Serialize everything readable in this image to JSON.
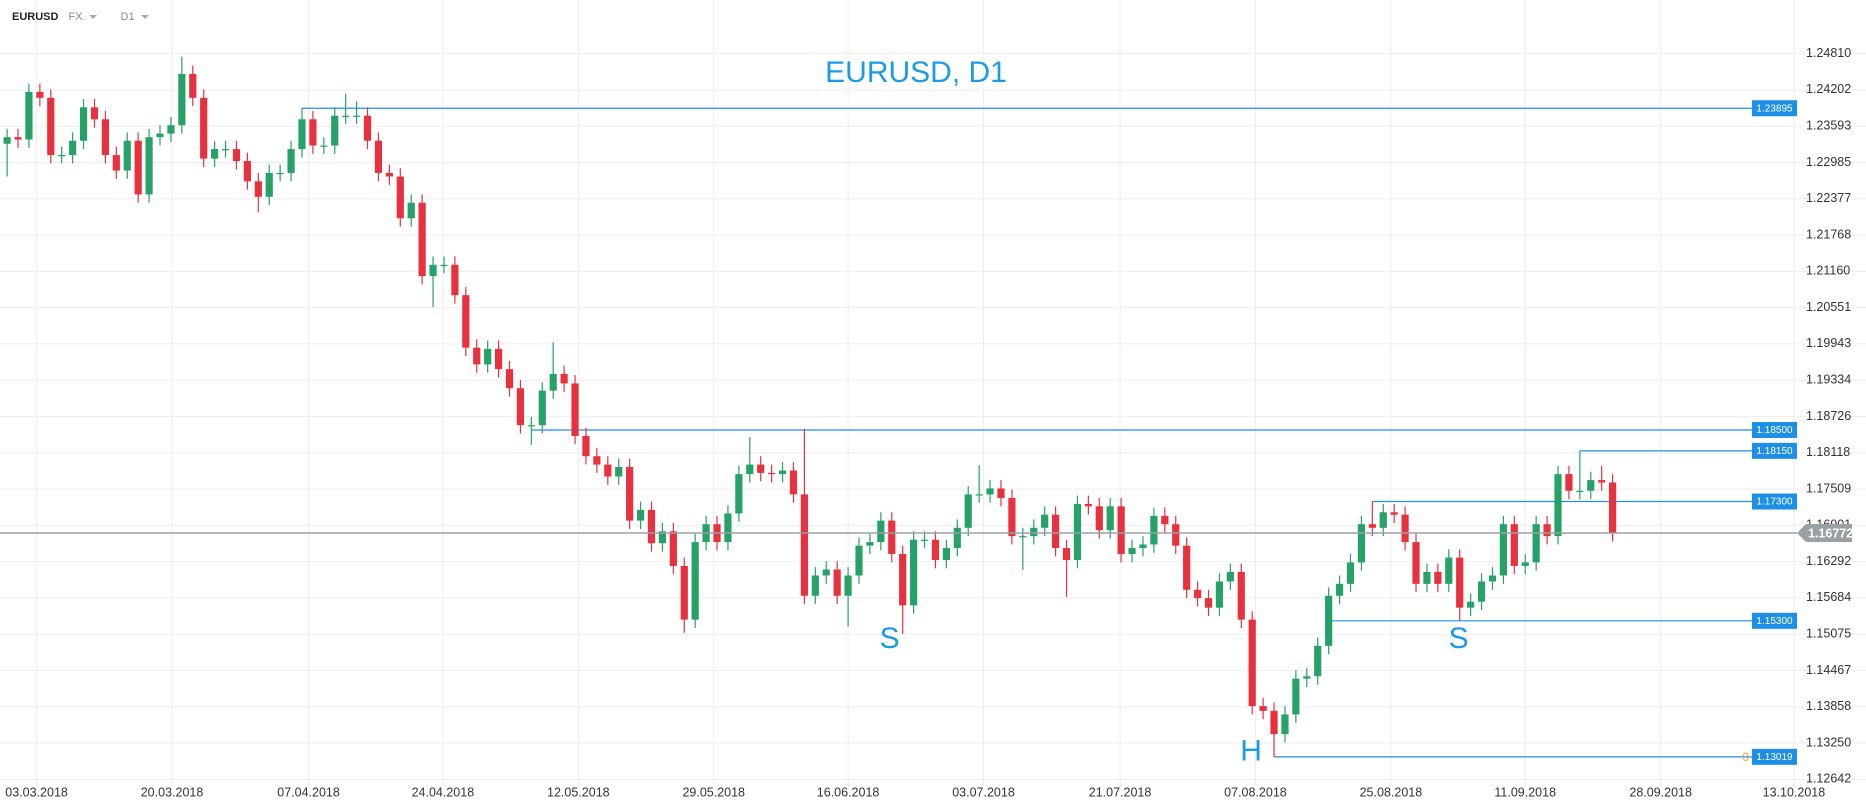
{
  "toolbar": {
    "symbol": "EURUSD",
    "market": "FX",
    "timeframe": "D1"
  },
  "chart_data": {
    "type": "candlestick",
    "title": "EURUSD, D1",
    "up_color": "#26a269",
    "down_color": "#e8313f",
    "level_color": "#1e8fe6",
    "last_color": "#9aa0a6",
    "grid": true,
    "xlim": [
      -0.65,
      170.2
    ],
    "xticks": [
      {
        "value": 2.7,
        "label": "03.03.2018"
      },
      {
        "value": 15.1,
        "label": "20.03.2018"
      },
      {
        "value": 27.6,
        "label": "07.04.2018"
      },
      {
        "value": 39.9,
        "label": "24.04.2018"
      },
      {
        "value": 52.3,
        "label": "12.05.2018"
      },
      {
        "value": 64.7,
        "label": "29.05.2018"
      },
      {
        "value": 77.0,
        "label": "16.06.2018"
      },
      {
        "value": 89.4,
        "label": "03.07.2018"
      },
      {
        "value": 101.9,
        "label": "21.07.2018"
      },
      {
        "value": 114.3,
        "label": "07.08.2018"
      },
      {
        "value": 126.7,
        "label": "25.08.2018"
      },
      {
        "value": 139.0,
        "label": "11.09.2018"
      },
      {
        "value": 151.4,
        "label": "28.09.2018"
      },
      {
        "value": 163.6,
        "label": "13.10.2018"
      }
    ],
    "ylim": [
      1.1253,
      1.2571
    ],
    "yticks": [
      {
        "value": 1.2481,
        "label": "1.24810"
      },
      1.24202,
      1.23593,
      1.22985,
      1.22377,
      1.21768,
      {
        "value": 1.2116,
        "label": "1.21160"
      },
      1.20551,
      1.19943,
      1.19334,
      1.18726,
      1.18118,
      1.17509,
      1.16901,
      1.16292,
      1.15684,
      1.15075,
      1.14467,
      1.13858,
      {
        "value": 1.1325,
        "label": "1.13250"
      },
      1.12642
    ],
    "open": [
      1.233,
      1.2341,
      1.2337,
      1.2417,
      1.2407,
      1.2311,
      1.2311,
      1.2335,
      1.2391,
      1.2371,
      1.2311,
      1.2285,
      1.2335,
      1.2245,
      1.2341,
      1.2347,
      1.2361,
      1.2447,
      1.2407,
      1.2305,
      1.2321,
      1.2321,
      1.2301,
      1.2267,
      1.2241,
      1.2281,
      1.2281,
      1.2321,
      1.2371,
      1.2327,
      1.2327,
      1.2377,
      1.2377,
      1.2377,
      1.2335,
      1.2281,
      1.2275,
      1.2205,
      1.2231,
      1.2108,
      1.2127,
      1.2127,
      1.2076,
      1.1988,
      1.196,
      1.1986,
      1.1952,
      1.192,
      1.1858,
      1.1858,
      1.1916,
      1.1944,
      1.1928,
      1.184,
      1.1806,
      1.1792,
      1.1772,
      1.1788,
      1.1698,
      1.1716,
      1.166,
      1.168,
      1.1622,
      1.1532,
      1.1662,
      1.1692,
      1.1662,
      1.171,
      1.1776,
      1.1792,
      1.1778,
      1.1776,
      1.1782,
      1.1742,
      1.1572,
      1.1606,
      1.1616,
      1.1572,
      1.1606,
      1.1656,
      1.1662,
      1.1698,
      1.1642,
      1.1556,
      1.1666,
      1.1666,
      1.1632,
      1.1652,
      1.1686,
      1.1742,
      1.1742,
      1.1752,
      1.1736,
      1.1672,
      1.1672,
      1.1686,
      1.1708,
      1.1652,
      1.1632,
      1.1726,
      1.1722,
      1.1682,
      1.1722,
      1.1642,
      1.1652,
      1.1658,
      1.1706,
      1.1692,
      1.1656,
      1.1582,
      1.1568,
      1.1552,
      1.1596,
      1.1612,
      1.1532,
      1.1387,
      1.1379,
      1.134,
      1.1373,
      1.1433,
      1.1437,
      1.1488,
      1.1572,
      1.1592,
      1.1628,
      1.1692,
      1.1686,
      1.1712,
      1.1708,
      1.1662,
      1.1592,
      1.1612,
      1.1592,
      1.1636,
      1.1552,
      1.1562,
      1.1596,
      1.1606,
      1.1692,
      1.1622,
      1.1628,
      1.1692,
      1.1672,
      1.1776,
      1.1748,
      1.1748,
      1.1766,
      1.1762
    ],
    "high": [
      1.2355,
      1.2355,
      1.2431,
      1.2431,
      1.2421,
      1.2325,
      1.2349,
      1.2405,
      1.2405,
      1.2385,
      1.2325,
      1.2349,
      1.2349,
      1.2355,
      1.2361,
      1.2375,
      1.2476,
      1.2461,
      1.2421,
      1.2335,
      1.2335,
      1.2335,
      1.2315,
      1.2281,
      1.2295,
      1.2295,
      1.2335,
      1.239,
      1.2385,
      1.2341,
      1.2391,
      1.2414,
      1.2401,
      1.2391,
      1.2349,
      1.2295,
      1.2289,
      1.2245,
      1.2245,
      1.2141,
      1.2141,
      1.2141,
      1.209,
      1.2002,
      1.2,
      1.2,
      1.1966,
      1.1934,
      1.1872,
      1.193,
      1.1997,
      1.1958,
      1.1942,
      1.1854,
      1.182,
      1.1806,
      1.1802,
      1.1802,
      1.173,
      1.173,
      1.1694,
      1.1694,
      1.1636,
      1.1676,
      1.1706,
      1.1706,
      1.1724,
      1.179,
      1.1838,
      1.1806,
      1.1792,
      1.1796,
      1.1796,
      1.1852,
      1.162,
      1.163,
      1.163,
      1.162,
      1.167,
      1.1676,
      1.1712,
      1.1712,
      1.1656,
      1.168,
      1.168,
      1.168,
      1.1666,
      1.17,
      1.1756,
      1.1791,
      1.1766,
      1.1766,
      1.175,
      1.1686,
      1.17,
      1.1722,
      1.1722,
      1.1666,
      1.174,
      1.174,
      1.1736,
      1.1736,
      1.1736,
      1.1666,
      1.1672,
      1.172,
      1.172,
      1.1706,
      1.167,
      1.1596,
      1.1582,
      1.161,
      1.1626,
      1.1626,
      1.1546,
      1.1401,
      1.1393,
      1.1387,
      1.1447,
      1.1451,
      1.1502,
      1.1586,
      1.1606,
      1.1642,
      1.1706,
      1.173,
      1.1726,
      1.1726,
      1.1722,
      1.1676,
      1.1626,
      1.1626,
      1.165,
      1.165,
      1.1576,
      1.161,
      1.162,
      1.1706,
      1.1706,
      1.1642,
      1.1706,
      1.1706,
      1.179,
      1.179,
      1.1815,
      1.178,
      1.179,
      1.1776
    ],
    "low": [
      1.2275,
      1.2323,
      1.2323,
      1.2393,
      1.2297,
      1.2297,
      1.2297,
      1.2321,
      1.2357,
      1.2297,
      1.2271,
      1.2271,
      1.2231,
      1.2231,
      1.2327,
      1.2333,
      1.2347,
      1.2393,
      1.2291,
      1.2291,
      1.2307,
      1.2287,
      1.2253,
      1.2215,
      1.2227,
      1.2267,
      1.2267,
      1.2307,
      1.2313,
      1.2313,
      1.2313,
      1.2363,
      1.2363,
      1.2321,
      1.2267,
      1.2261,
      1.2191,
      1.2191,
      1.2094,
      1.2056,
      1.2113,
      1.2062,
      1.1974,
      1.1946,
      1.1946,
      1.1938,
      1.1906,
      1.1844,
      1.1825,
      1.1844,
      1.1902,
      1.1914,
      1.1826,
      1.1792,
      1.1778,
      1.1758,
      1.1758,
      1.1684,
      1.1684,
      1.1646,
      1.1646,
      1.1608,
      1.151,
      1.1518,
      1.1648,
      1.1648,
      1.1648,
      1.1696,
      1.1762,
      1.1764,
      1.1762,
      1.1762,
      1.1728,
      1.1558,
      1.1558,
      1.1592,
      1.1558,
      1.152,
      1.1592,
      1.1642,
      1.1648,
      1.1628,
      1.1508,
      1.1542,
      1.1652,
      1.1618,
      1.1618,
      1.1638,
      1.1672,
      1.1728,
      1.1728,
      1.1722,
      1.1658,
      1.1615,
      1.1658,
      1.1672,
      1.1638,
      1.157,
      1.1618,
      1.1708,
      1.1668,
      1.1668,
      1.1628,
      1.1628,
      1.1638,
      1.1644,
      1.1678,
      1.1642,
      1.1568,
      1.1554,
      1.1538,
      1.1538,
      1.1582,
      1.1518,
      1.1373,
      1.1365,
      1.1302,
      1.1326,
      1.1359,
      1.1419,
      1.1423,
      1.1474,
      1.1558,
      1.1578,
      1.1614,
      1.1672,
      1.1672,
      1.1694,
      1.1648,
      1.1578,
      1.1578,
      1.1578,
      1.1578,
      1.153,
      1.1538,
      1.1548,
      1.1582,
      1.1592,
      1.1608,
      1.1608,
      1.1614,
      1.1658,
      1.1658,
      1.1734,
      1.1734,
      1.1734,
      1.1748,
      1.1663
    ],
    "close": [
      1.2341,
      1.2337,
      1.2417,
      1.2407,
      1.2311,
      1.2311,
      1.2335,
      1.2391,
      1.2371,
      1.2311,
      1.2285,
      1.2335,
      1.2245,
      1.2341,
      1.2347,
      1.2361,
      1.2447,
      1.2407,
      1.2305,
      1.2321,
      1.2321,
      1.2301,
      1.2267,
      1.2241,
      1.2281,
      1.2281,
      1.2321,
      1.2371,
      1.2327,
      1.2327,
      1.2377,
      1.2377,
      1.2377,
      1.2335,
      1.2281,
      1.2275,
      1.2205,
      1.2231,
      1.2108,
      1.2127,
      1.2127,
      1.2076,
      1.1988,
      1.196,
      1.1986,
      1.1952,
      1.192,
      1.1858,
      1.1858,
      1.1916,
      1.1944,
      1.1928,
      1.184,
      1.1806,
      1.1792,
      1.1772,
      1.1788,
      1.1698,
      1.1716,
      1.166,
      1.168,
      1.1622,
      1.1532,
      1.1662,
      1.1692,
      1.1662,
      1.171,
      1.1776,
      1.1792,
      1.1778,
      1.1776,
      1.1782,
      1.1742,
      1.1572,
      1.1606,
      1.1616,
      1.1572,
      1.1606,
      1.1656,
      1.1662,
      1.1698,
      1.1642,
      1.1556,
      1.1666,
      1.1666,
      1.1632,
      1.1652,
      1.1686,
      1.1742,
      1.1742,
      1.1752,
      1.1736,
      1.1672,
      1.1672,
      1.1686,
      1.1708,
      1.1652,
      1.1632,
      1.1726,
      1.1722,
      1.1682,
      1.1722,
      1.1642,
      1.1652,
      1.1658,
      1.1706,
      1.1692,
      1.1656,
      1.1582,
      1.1568,
      1.1552,
      1.1596,
      1.1612,
      1.1532,
      1.1387,
      1.1379,
      1.134,
      1.1373,
      1.1433,
      1.1437,
      1.1488,
      1.1572,
      1.1592,
      1.1628,
      1.1692,
      1.1686,
      1.1712,
      1.1708,
      1.1662,
      1.1592,
      1.1612,
      1.1592,
      1.1636,
      1.1552,
      1.1562,
      1.1596,
      1.1606,
      1.1692,
      1.1622,
      1.1628,
      1.1692,
      1.1672,
      1.1776,
      1.1748,
      1.1748,
      1.1766,
      1.1762,
      1.1677
    ],
    "levels": [
      {
        "value": 1.23895,
        "start": 27
      },
      {
        "value": 1.185,
        "label": "1.18500",
        "start": 48
      },
      {
        "value": 1.1815,
        "label": "1.18150",
        "start": 144
      },
      {
        "value": 1.173,
        "label": "1.17300",
        "start": 125
      },
      {
        "value": 1.153,
        "label": "1.15300",
        "start": 121
      },
      {
        "value": 1.13019,
        "start": 116,
        "tag": "0"
      }
    ],
    "last": 1.16772,
    "annotations": [
      {
        "text": "S",
        "x": 80.8,
        "y": 1.1498
      },
      {
        "text": "H",
        "x": 113.9,
        "y": 1.1309
      },
      {
        "text": "S",
        "x": 132.9,
        "y": 1.1498
      }
    ]
  }
}
